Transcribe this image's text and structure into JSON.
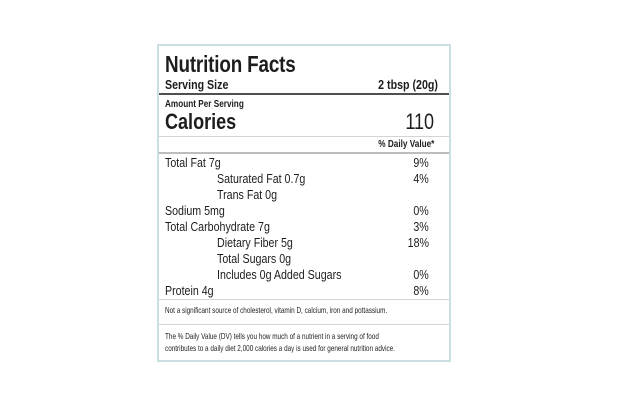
{
  "label": {
    "title": "Nutrition Facts",
    "serving_size": {
      "label": "Serving Size",
      "value": "2 tbsp (20g)"
    },
    "amount_per_serving": "Amount Per Serving",
    "calories": {
      "label": "Calories",
      "value": "110"
    },
    "daily_value_header": "% Daily Value*",
    "nutrients": [
      {
        "name": "Total Fat 7g",
        "daily_value": "9%",
        "indent": false
      },
      {
        "name": "Saturated Fat 0.7g",
        "daily_value": "4%",
        "indent": true
      },
      {
        "name": "Trans Fat 0g",
        "daily_value": "",
        "indent": true
      },
      {
        "name": "Sodium 5mg",
        "daily_value": "0%",
        "indent": false
      },
      {
        "name": "Total Carbohydrate 7g",
        "daily_value": "3%",
        "indent": false
      },
      {
        "name": "Dietary Fiber 5g",
        "daily_value": "18%",
        "indent": true
      },
      {
        "name": "Total Sugars 0g",
        "daily_value": "",
        "indent": true
      },
      {
        "name": "Includes 0g Added Sugars",
        "daily_value": "0%",
        "indent": true
      },
      {
        "name": "Protein 4g",
        "daily_value": "8%",
        "indent": false
      }
    ],
    "footnotes": {
      "not_significant": "Not a significant source of cholesterol, vitamin D, calcium, iron and pottassium.",
      "daily_value_line1": "The % Daily Value (DV) tells you how much of a nutrient in a serving of food",
      "daily_value_line2": "contributes to a daily diet 2,000 calories a day is used for general nutrition advice."
    },
    "colors": {
      "border": "#c9dfe2",
      "text": "#1d1d1d",
      "rule_thick": "#4f4f4f",
      "rule_medium": "#bdbdbd",
      "rule_thin": "#d4d4d4"
    }
  }
}
